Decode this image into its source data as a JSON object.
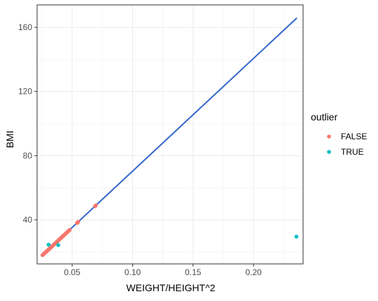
{
  "chart_data": {
    "type": "scatter",
    "title": "",
    "xlabel": "WEIGHT/HEIGHT^2",
    "ylabel": "BMI",
    "xlim": [
      0.021,
      0.241
    ],
    "ylim": [
      12.5,
      174
    ],
    "x_ticks": [
      {
        "value": 0.05,
        "label": "0.05"
      },
      {
        "value": 0.1,
        "label": "0.10"
      },
      {
        "value": 0.15,
        "label": "0.15"
      },
      {
        "value": 0.2,
        "label": "0.20"
      }
    ],
    "y_ticks": [
      {
        "value": 40,
        "label": "40"
      },
      {
        "value": 80,
        "label": "80"
      },
      {
        "value": 120,
        "label": "120"
      },
      {
        "value": 160,
        "label": "160"
      }
    ],
    "grid": true,
    "legend": {
      "title": "outlier",
      "position": "right",
      "entries": [
        {
          "label": "FALSE",
          "color": "#F8766D"
        },
        {
          "label": "TRUE",
          "color": "#00BFC4"
        }
      ]
    },
    "series": [
      {
        "name": "FALSE",
        "color": "#F8766D",
        "points": [
          [
            0.0255,
            18.0
          ],
          [
            0.026,
            18.4
          ],
          [
            0.0265,
            18.7
          ],
          [
            0.027,
            19.0
          ],
          [
            0.0275,
            19.4
          ],
          [
            0.028,
            19.7
          ],
          [
            0.0285,
            20.1
          ],
          [
            0.029,
            20.4
          ],
          [
            0.0295,
            20.8
          ],
          [
            0.03,
            21.1
          ],
          [
            0.0305,
            21.5
          ],
          [
            0.031,
            21.8
          ],
          [
            0.0315,
            22.2
          ],
          [
            0.032,
            22.5
          ],
          [
            0.0325,
            22.9
          ],
          [
            0.033,
            23.2
          ],
          [
            0.0335,
            23.6
          ],
          [
            0.034,
            23.9
          ],
          [
            0.0345,
            24.3
          ],
          [
            0.035,
            24.6
          ],
          [
            0.0355,
            25.0
          ],
          [
            0.036,
            25.3
          ],
          [
            0.0365,
            25.7
          ],
          [
            0.037,
            26.0
          ],
          [
            0.0375,
            26.4
          ],
          [
            0.038,
            26.7
          ],
          [
            0.0385,
            27.1
          ],
          [
            0.039,
            27.4
          ],
          [
            0.0395,
            27.8
          ],
          [
            0.04,
            28.1
          ],
          [
            0.0405,
            28.5
          ],
          [
            0.041,
            28.8
          ],
          [
            0.0415,
            29.2
          ],
          [
            0.042,
            29.5
          ],
          [
            0.0425,
            29.9
          ],
          [
            0.043,
            30.2
          ],
          [
            0.0435,
            30.6
          ],
          [
            0.044,
            30.9
          ],
          [
            0.0445,
            31.3
          ],
          [
            0.045,
            31.6
          ],
          [
            0.0455,
            32.0
          ],
          [
            0.046,
            32.3
          ],
          [
            0.0465,
            32.7
          ],
          [
            0.047,
            33.0
          ],
          [
            0.0475,
            33.4
          ],
          [
            0.048,
            33.7
          ],
          [
            0.054,
            38.0
          ],
          [
            0.055,
            38.7
          ],
          [
            0.0545,
            38.3
          ],
          [
            0.069,
            48.5
          ],
          [
            0.0695,
            48.9
          ]
        ]
      },
      {
        "name": "TRUE",
        "color": "#00BFC4",
        "points": [
          [
            0.0305,
            24.5
          ],
          [
            0.0385,
            24.2
          ],
          [
            0.2355,
            29.5
          ]
        ]
      }
    ],
    "fit_line": {
      "color": "#3366CC",
      "from": [
        0.0255,
        18.0
      ],
      "to": [
        0.2355,
        165.6
      ]
    }
  }
}
